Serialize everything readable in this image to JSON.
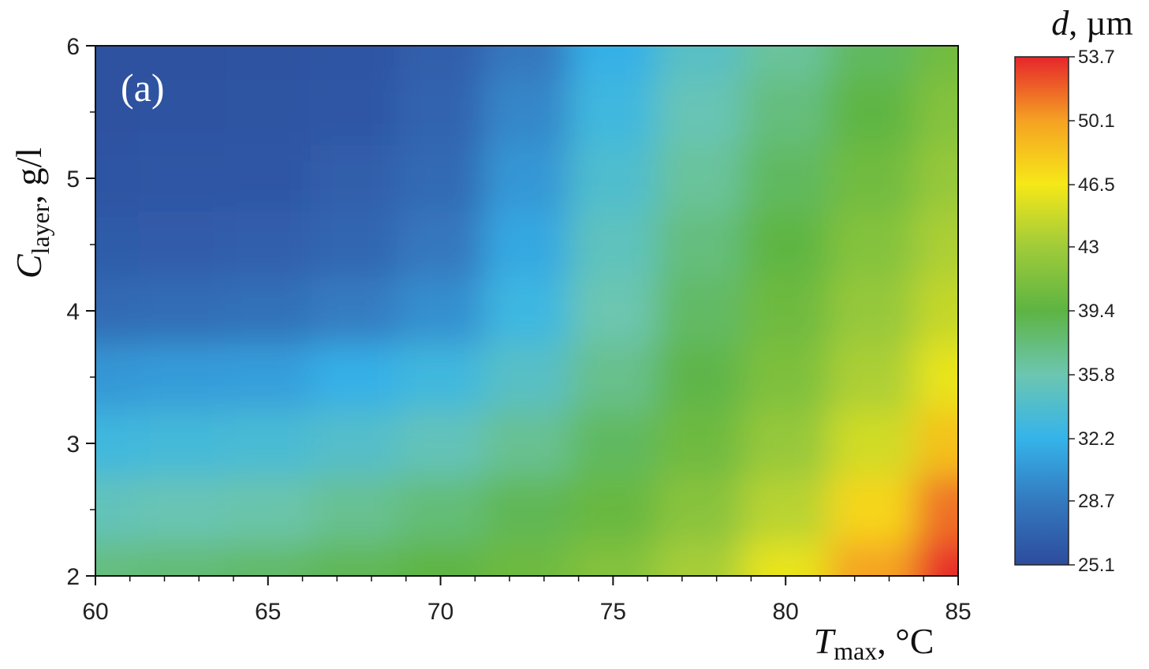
{
  "chart_data": {
    "type": "contour",
    "annotation": "(a)",
    "x_label": {
      "symbol": "T",
      "subscript": "max",
      "unit": ", °C"
    },
    "y_label": {
      "symbol": "C",
      "subscript": "layer",
      "unit": ", g/l"
    },
    "colorbar_label": {
      "symbol": "d",
      "unit": ", µm"
    },
    "x": [
      60,
      62.5,
      65,
      67.5,
      70,
      72.5,
      75,
      77.5,
      80,
      82.5,
      85
    ],
    "y": [
      6,
      5.5,
      5,
      4.5,
      4,
      3.5,
      3,
      2.5,
      2
    ],
    "z": [
      [
        25.5,
        25.5,
        25.6,
        25.8,
        26.5,
        28.5,
        32,
        34.5,
        36.5,
        38.5,
        40.5
      ],
      [
        25.5,
        25.6,
        25.7,
        26,
        27,
        29.5,
        33,
        35.5,
        37.5,
        39.5,
        41.5
      ],
      [
        25.8,
        25.9,
        26,
        26.5,
        27.5,
        30.5,
        34,
        36.5,
        38.5,
        40.5,
        42.5
      ],
      [
        26.3,
        26.4,
        26.6,
        27.2,
        28.5,
        31.5,
        35,
        37.5,
        39.5,
        41.5,
        43.5
      ],
      [
        27.5,
        27.7,
        28,
        28.8,
        30,
        32.8,
        35.8,
        38.3,
        40.3,
        42.5,
        44.5
      ],
      [
        30.5,
        30.8,
        31,
        32,
        33,
        34.5,
        37,
        39.2,
        41.2,
        43.5,
        46
      ],
      [
        33,
        33.3,
        33.6,
        34.3,
        35.3,
        36.8,
        38.5,
        40.3,
        42.5,
        45,
        48.5
      ],
      [
        35.3,
        35.6,
        36,
        36.8,
        37.7,
        38.8,
        40,
        41.8,
        44,
        47.5,
        51.5
      ],
      [
        37.5,
        37.8,
        38.2,
        38.8,
        39.5,
        40.3,
        41.5,
        43.3,
        46,
        50,
        53.5
      ]
    ],
    "xlim": [
      60,
      85
    ],
    "xticks": [
      60,
      65,
      70,
      75,
      80,
      85
    ],
    "ylim": [
      2,
      6
    ],
    "yticks": [
      2,
      3,
      4,
      5,
      6
    ],
    "zlim": [
      25.1,
      53.7
    ],
    "zticks": [
      25.1,
      28.7,
      32.2,
      35.8,
      39.4,
      43.0,
      46.5,
      50.1,
      53.7
    ],
    "colors": [
      "#2d4c9c",
      "#3479bf",
      "#35b4ea",
      "#6cc6b0",
      "#5db443",
      "#9fcb3a",
      "#f6e818",
      "#f5a123",
      "#e6252b"
    ]
  }
}
